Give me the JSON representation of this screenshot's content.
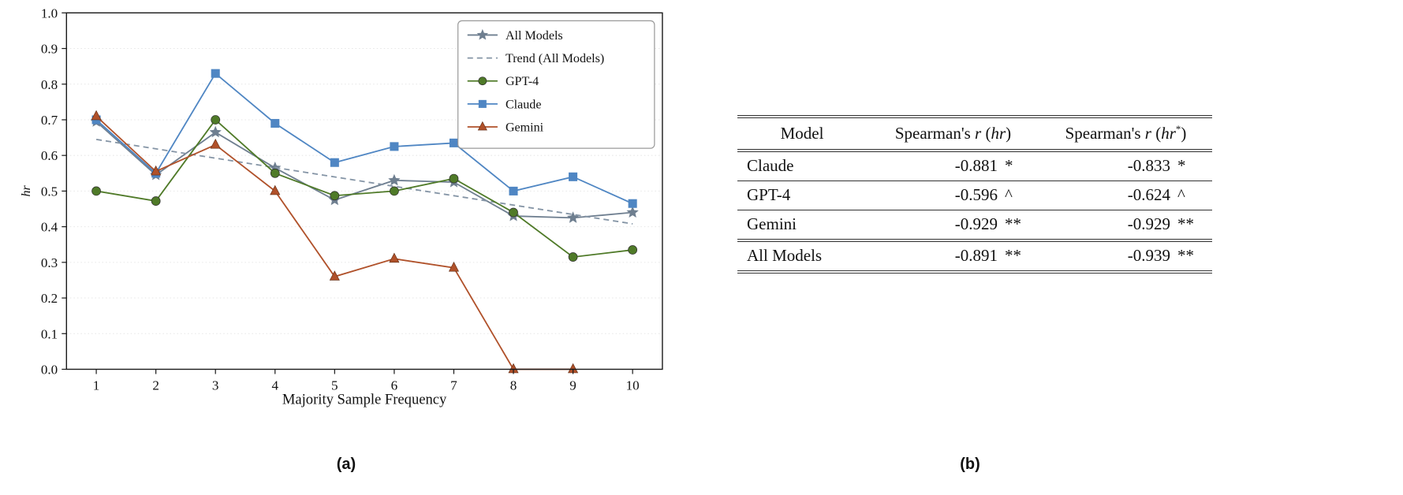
{
  "panel_a": {
    "caption": "(a)"
  },
  "panel_b": {
    "caption": "(b)"
  },
  "chart_data": {
    "type": "line",
    "title": "",
    "xlabel": "Majority Sample Frequency",
    "ylabel": "hr",
    "x": [
      1,
      2,
      3,
      4,
      5,
      6,
      7,
      8,
      9,
      10
    ],
    "xlim": [
      0.5,
      10.5
    ],
    "ylim": [
      0.0,
      1.0
    ],
    "yticks": [
      0.0,
      0.1,
      0.2,
      0.3,
      0.4,
      0.5,
      0.6,
      0.7,
      0.8,
      0.9,
      1.0
    ],
    "grid": "horizontal-dotted",
    "legend_position": "upper right",
    "series": [
      {
        "name": "All Models",
        "color": "#6f7f90",
        "marker": "star",
        "dash": null,
        "values": [
          0.695,
          0.545,
          0.665,
          0.565,
          0.475,
          0.53,
          0.525,
          0.43,
          0.425,
          0.44
        ]
      },
      {
        "name": "Trend (All Models)",
        "color": "#8494a5",
        "marker": "none",
        "dash": "7,5",
        "x": [
          1,
          10
        ],
        "values": [
          0.645,
          0.408
        ]
      },
      {
        "name": "GPT-4",
        "color": "#4f7a28",
        "marker": "circle",
        "dash": null,
        "values": [
          0.5,
          0.472,
          0.7,
          0.55,
          0.487,
          0.5,
          0.535,
          0.44,
          0.315,
          0.335
        ]
      },
      {
        "name": "Claude",
        "color": "#4f86c3",
        "marker": "square",
        "dash": null,
        "values": [
          0.7,
          0.55,
          0.83,
          0.69,
          0.58,
          0.625,
          0.635,
          0.5,
          0.54,
          0.465
        ]
      },
      {
        "name": "Gemini",
        "color": "#b0512a",
        "marker": "triangle",
        "dash": null,
        "values": [
          0.71,
          0.555,
          0.63,
          0.5,
          0.26,
          0.31,
          0.285,
          0.0,
          0.0,
          null
        ]
      }
    ]
  },
  "table": {
    "columns": [
      {
        "plain": "Model"
      },
      {
        "prefix": "Spearman's",
        "r": "r",
        "arg": "hr",
        "sup": ""
      },
      {
        "prefix": "Spearman's",
        "r": "r",
        "arg": "hr",
        "sup": "*"
      }
    ],
    "rows": [
      {
        "model": "Claude",
        "group_end": false,
        "values": [
          {
            "num": "-0.881",
            "sig": "*"
          },
          {
            "num": "-0.833",
            "sig": "*"
          }
        ]
      },
      {
        "model": "GPT-4",
        "group_end": false,
        "values": [
          {
            "num": "-0.596",
            "sig": "^"
          },
          {
            "num": "-0.624",
            "sig": "^"
          }
        ]
      },
      {
        "model": "Gemini",
        "group_end": true,
        "values": [
          {
            "num": "-0.929",
            "sig": "**"
          },
          {
            "num": "-0.929",
            "sig": "**"
          }
        ]
      },
      {
        "model": "All Models",
        "group_end": false,
        "values": [
          {
            "num": "-0.891",
            "sig": "**"
          },
          {
            "num": "-0.939",
            "sig": "**"
          }
        ]
      }
    ]
  }
}
